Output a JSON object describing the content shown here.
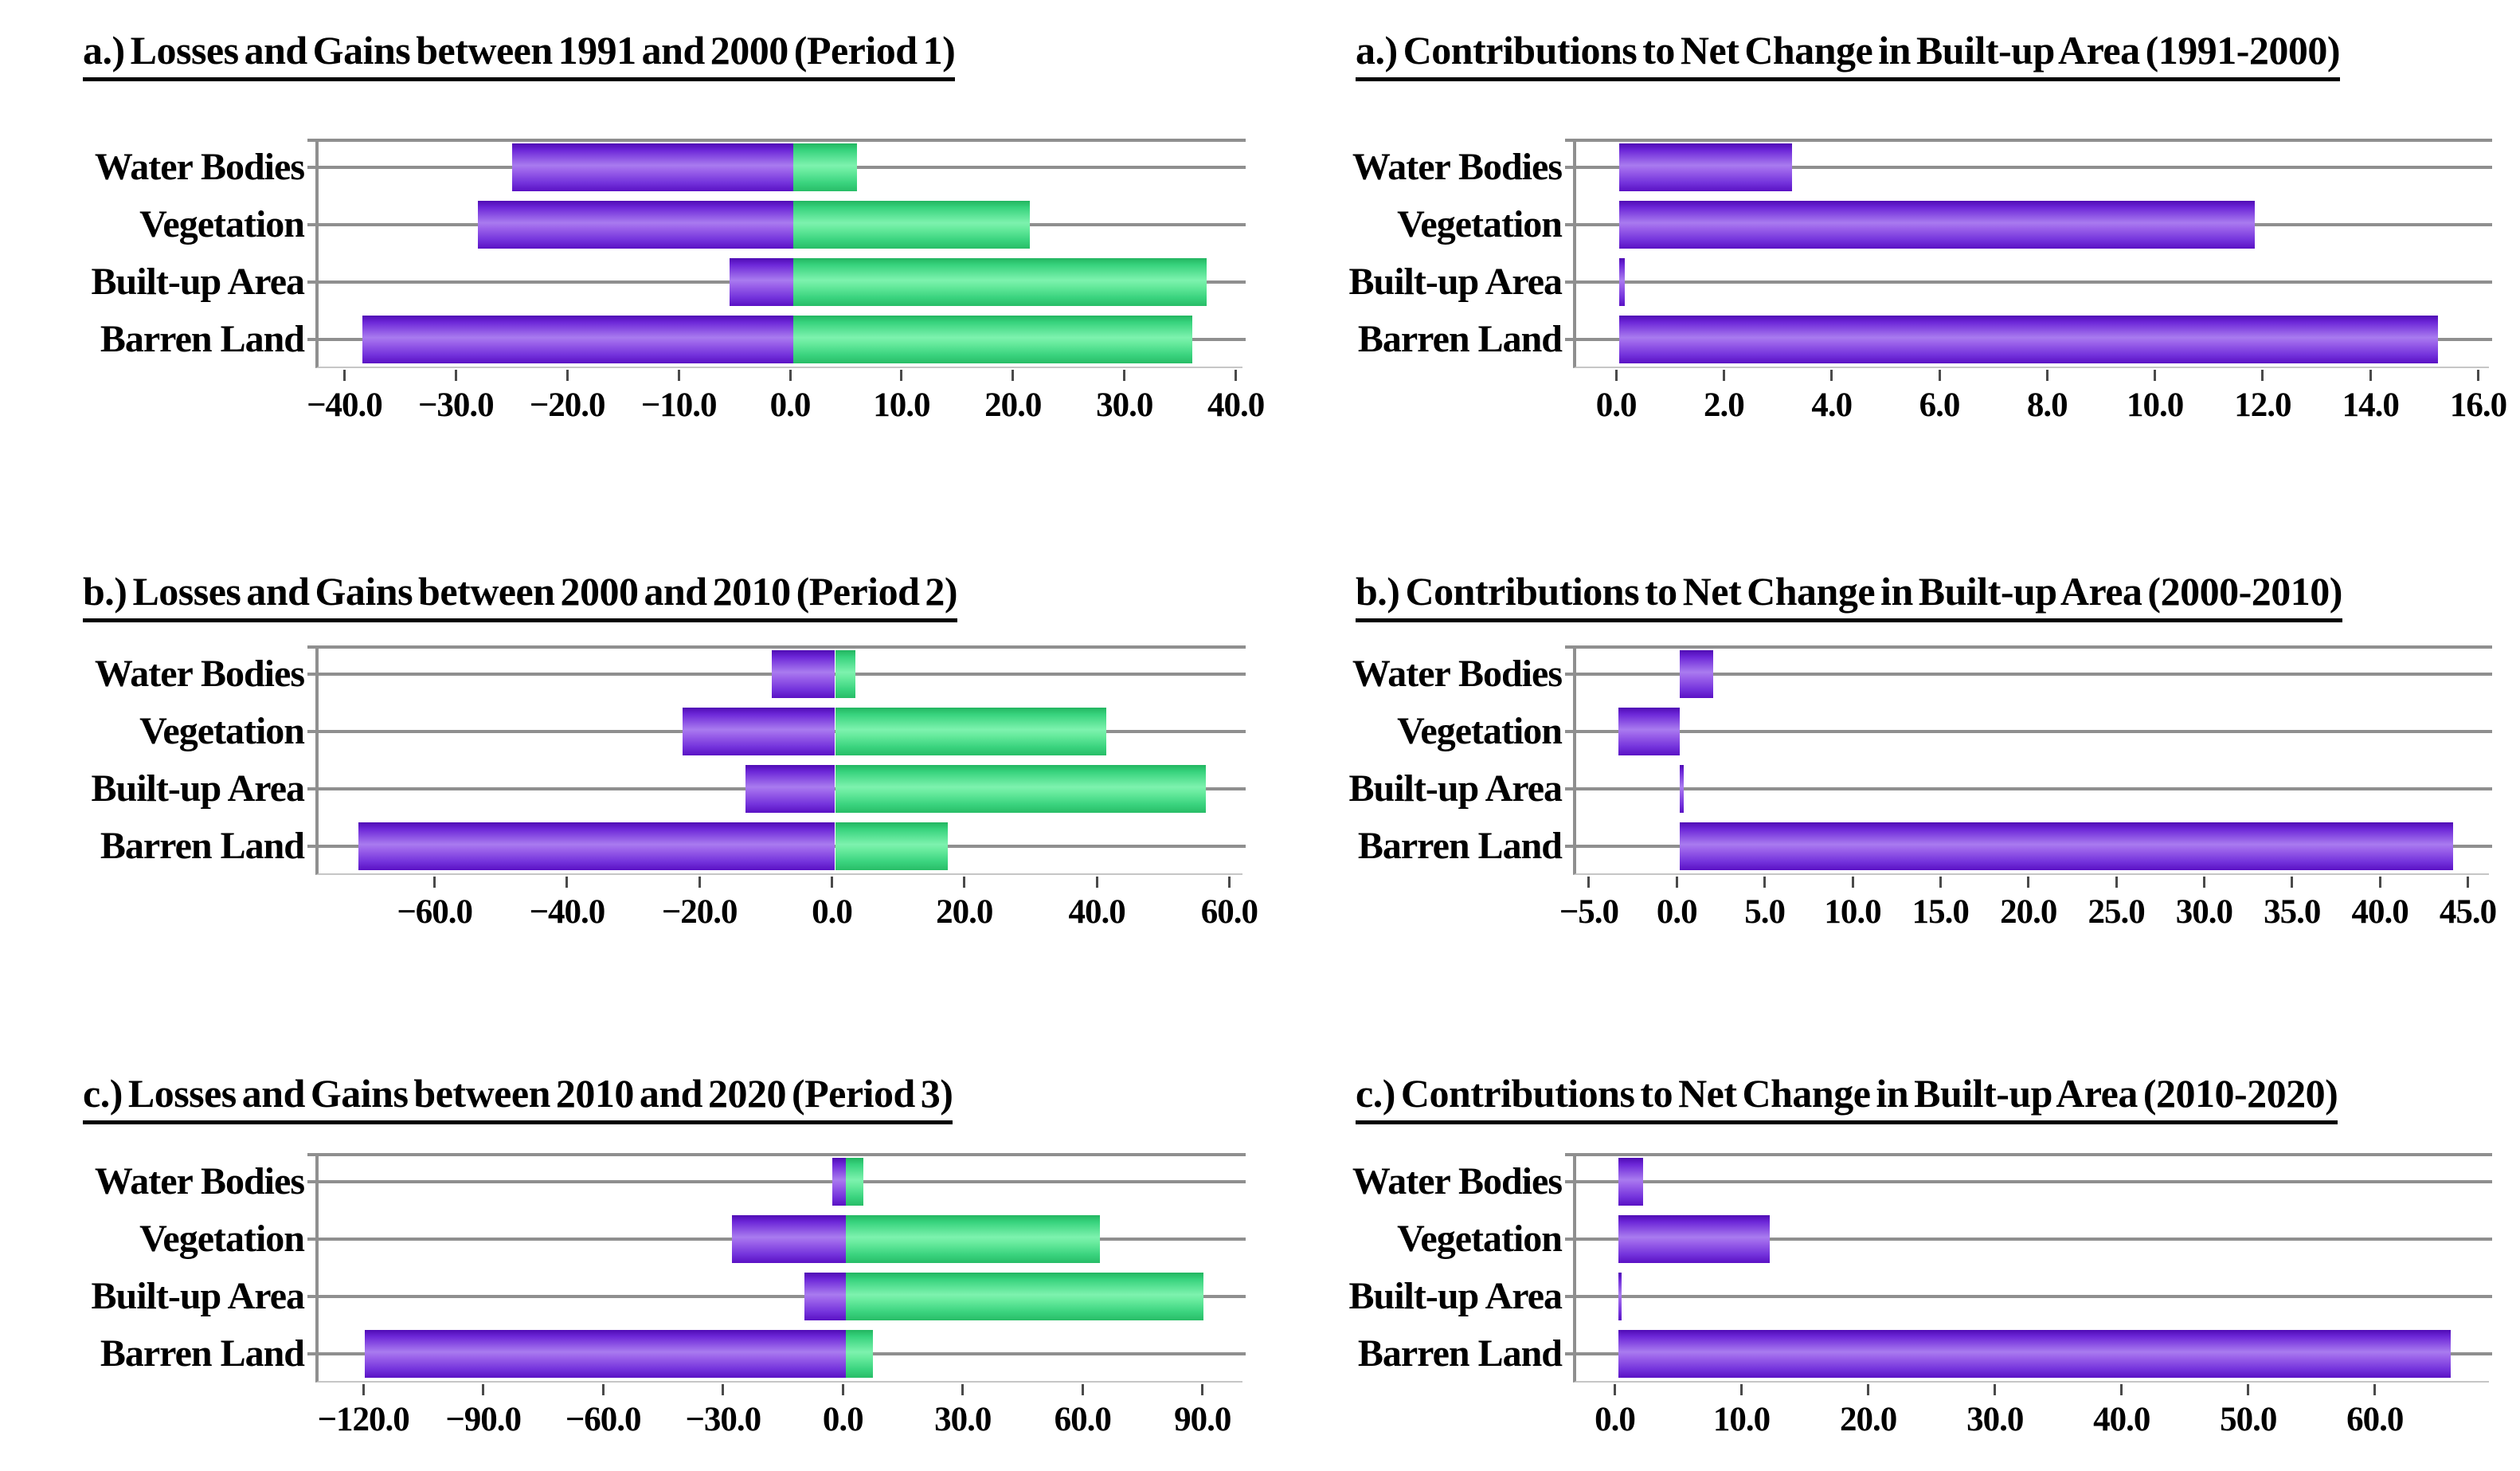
{
  "figure": {
    "background": "#ffffff",
    "text_color": "#000000",
    "gridline_color": "#8f8f8f",
    "loss_color": "#7b2fe0",
    "gain_color": "#45e08d"
  },
  "categories": [
    "Water Bodies",
    "Vegetation",
    "Built-up Area",
    "Barren Land"
  ],
  "chart_data": [
    {
      "id": "losses-gains-period-1",
      "type": "bar",
      "orientation": "horizontal",
      "row": 0,
      "col": 0,
      "title": "a.) Losses and Gains between 1991 and 2000 (Period 1)",
      "categories": [
        "Water Bodies",
        "Vegetation",
        "Built-up Area",
        "Barren Land"
      ],
      "series": [
        {
          "name": "Losses",
          "color_key": "purple",
          "color": "#7b2fe0",
          "values": [
            -25.2,
            -28.3,
            -5.7,
            -38.7
          ]
        },
        {
          "name": "Gains",
          "color_key": "green",
          "color": "#45e08d",
          "values": [
            5.7,
            21.2,
            37.1,
            35.8
          ]
        }
      ],
      "xlim": [
        -42.6,
        40.6
      ],
      "xticks": [
        -40,
        -30,
        -20,
        -10,
        0,
        10,
        20,
        30,
        40
      ],
      "grid": "horizontal",
      "legend_position": "none",
      "xlabel": "",
      "ylabel": ""
    },
    {
      "id": "contributions-1991-2000",
      "type": "bar",
      "orientation": "horizontal",
      "row": 0,
      "col": 1,
      "title": "a.) Contributions to Net Change in Built-up Area (1991-2000)",
      "categories": [
        "Water Bodies",
        "Vegetation",
        "Built-up Area",
        "Barren Land"
      ],
      "series": [
        {
          "name": "Net Contribution",
          "color_key": "purple",
          "color": "#7b2fe0",
          "values": [
            3.2,
            11.8,
            0.1,
            15.2
          ]
        }
      ],
      "xlim": [
        -0.8,
        16.2
      ],
      "xticks": [
        0,
        2,
        4,
        6,
        8,
        10,
        12,
        14,
        16
      ],
      "grid": "horizontal",
      "legend_position": "none",
      "xlabel": "",
      "ylabel": ""
    },
    {
      "id": "losses-gains-period-2",
      "type": "bar",
      "orientation": "horizontal",
      "row": 1,
      "col": 0,
      "title": "b.) Losses and Gains between 2000 and 2010 (Period 2)",
      "categories": [
        "Water Bodies",
        "Vegetation",
        "Built-up Area",
        "Barren Land"
      ],
      "series": [
        {
          "name": "Losses",
          "color_key": "purple",
          "color": "#7b2fe0",
          "values": [
            -9.6,
            -23.0,
            -13.5,
            -72.0
          ]
        },
        {
          "name": "Gains",
          "color_key": "green",
          "color": "#45e08d",
          "values": [
            3.1,
            41.0,
            56.0,
            17.0
          ]
        }
      ],
      "xlim": [
        -78,
        62
      ],
      "xticks": [
        -60,
        -40,
        -20,
        0,
        20,
        40,
        60
      ],
      "grid": "horizontal",
      "legend_position": "none",
      "xlabel": "",
      "ylabel": ""
    },
    {
      "id": "contributions-2000-2010",
      "type": "bar",
      "orientation": "horizontal",
      "row": 1,
      "col": 1,
      "title": "b.) Contributions to Net Change in Built-up Area (2000-2010)",
      "categories": [
        "Water Bodies",
        "Vegetation",
        "Built-up Area",
        "Barren Land"
      ],
      "series": [
        {
          "name": "Net Contribution",
          "color_key": "purple",
          "color": "#7b2fe0",
          "values": [
            1.9,
            -3.5,
            0.2,
            44.0
          ]
        }
      ],
      "xlim": [
        -5.9,
        46.2
      ],
      "xticks": [
        -5,
        0,
        5,
        10,
        15,
        20,
        25,
        30,
        35,
        40,
        45
      ],
      "grid": "horizontal",
      "legend_position": "none",
      "xlabel": "",
      "ylabel": ""
    },
    {
      "id": "losses-gains-period-3",
      "type": "bar",
      "orientation": "horizontal",
      "row": 2,
      "col": 0,
      "title": "c.) Losses and Gains between 2010 and 2020 (Period 3)",
      "categories": [
        "Water Bodies",
        "Vegetation",
        "Built-up Area",
        "Barren Land"
      ],
      "series": [
        {
          "name": "Losses",
          "color_key": "purple",
          "color": "#7b2fe0",
          "values": [
            -3.5,
            -28.5,
            -10.5,
            -120.5
          ]
        },
        {
          "name": "Gains",
          "color_key": "green",
          "color": "#45e08d",
          "values": [
            4.3,
            63.5,
            89.5,
            6.8
          ]
        }
      ],
      "xlim": [
        -132,
        100
      ],
      "xticks": [
        -120,
        -90,
        -60,
        -30,
        0,
        30,
        60,
        90
      ],
      "grid": "horizontal",
      "legend_position": "none",
      "xlabel": "",
      "ylabel": ""
    },
    {
      "id": "contributions-2010-2020",
      "type": "bar",
      "orientation": "horizontal",
      "row": 2,
      "col": 1,
      "title": "c.) Contributions to Net Change in Built-up Area (2010-2020)",
      "categories": [
        "Water Bodies",
        "Vegetation",
        "Built-up Area",
        "Barren Land"
      ],
      "series": [
        {
          "name": "Net Contribution",
          "color_key": "purple",
          "color": "#7b2fe0",
          "values": [
            2.0,
            12.0,
            0.3,
            65.7
          ]
        }
      ],
      "xlim": [
        -3.3,
        69
      ],
      "xticks": [
        0,
        10,
        20,
        30,
        40,
        50,
        60
      ],
      "grid": "horizontal",
      "legend_position": "none",
      "xlabel": "",
      "ylabel": ""
    }
  ]
}
